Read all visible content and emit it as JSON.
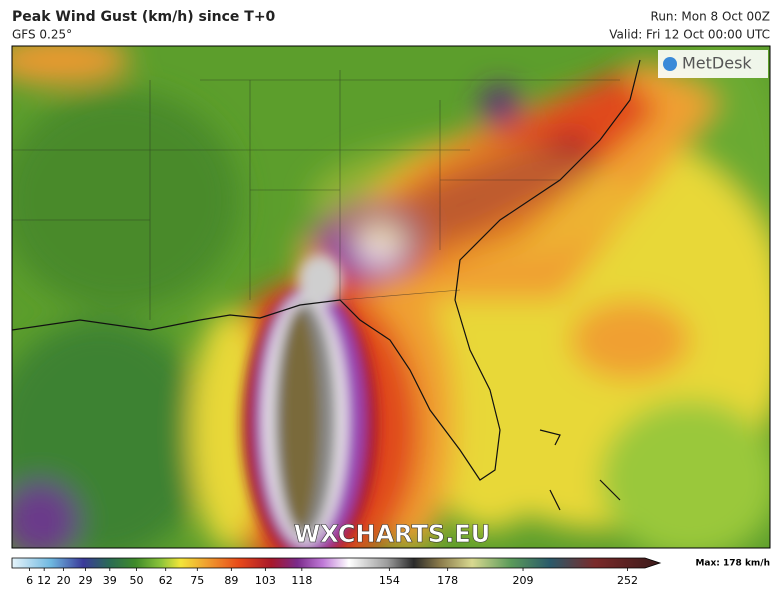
{
  "header": {
    "title": "Peak Wind Gust (km/h) since T+0",
    "model": "GFS 0.25°",
    "run": "Run: Mon 8 Oct 00Z",
    "valid": "Valid: Fri 12 Oct 00:00 UTC"
  },
  "logo": "MetDesk",
  "watermark": "WXCHARTS.EU",
  "colorbar": {
    "lim": [
      0,
      260
    ],
    "ticks": [
      6,
      12,
      20,
      29,
      39,
      50,
      62,
      75,
      89,
      103,
      118,
      154,
      178,
      209,
      252
    ],
    "max_label": "Max: 178 km/h"
  }
}
